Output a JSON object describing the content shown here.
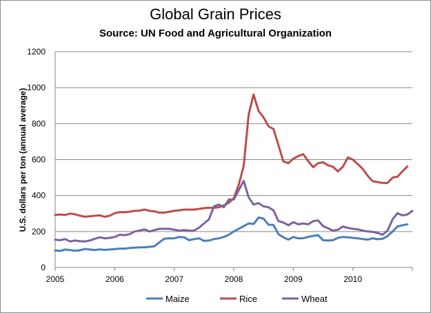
{
  "chart_data": {
    "type": "line",
    "title": "Global Grain Prices",
    "subtitle": "Source:  UN Food and Agricultural Organization",
    "xlabel": "",
    "ylabel": "U.S. dollars per ton (annual average)",
    "xlim": [
      2005,
      2011
    ],
    "ylim": [
      0,
      1200
    ],
    "x_ticks": [
      "2005",
      "2006",
      "2007",
      "2008",
      "2009",
      "2010"
    ],
    "y_ticks": [
      "0",
      "200",
      "400",
      "600",
      "800",
      "1000",
      "1200"
    ],
    "grid": true,
    "legend_position": "bottom",
    "series": [
      {
        "name": "Maize",
        "color": "#4a7ebb",
        "points": [
          [
            2005.0,
            95
          ],
          [
            2005.083,
            92
          ],
          [
            2005.167,
            100
          ],
          [
            2005.25,
            97
          ],
          [
            2005.333,
            93
          ],
          [
            2005.417,
            96
          ],
          [
            2005.5,
            103
          ],
          [
            2005.583,
            100
          ],
          [
            2005.667,
            97
          ],
          [
            2005.75,
            101
          ],
          [
            2005.833,
            98
          ],
          [
            2005.917,
            100
          ],
          [
            2006.0,
            102
          ],
          [
            2006.083,
            105
          ],
          [
            2006.167,
            105
          ],
          [
            2006.25,
            108
          ],
          [
            2006.333,
            110
          ],
          [
            2006.417,
            112
          ],
          [
            2006.5,
            112
          ],
          [
            2006.583,
            115
          ],
          [
            2006.667,
            118
          ],
          [
            2006.75,
            140
          ],
          [
            2006.833,
            160
          ],
          [
            2006.917,
            162
          ],
          [
            2007.0,
            162
          ],
          [
            2007.083,
            170
          ],
          [
            2007.167,
            168
          ],
          [
            2007.25,
            152
          ],
          [
            2007.333,
            158
          ],
          [
            2007.417,
            162
          ],
          [
            2007.5,
            148
          ],
          [
            2007.583,
            150
          ],
          [
            2007.667,
            158
          ],
          [
            2007.75,
            162
          ],
          [
            2007.833,
            170
          ],
          [
            2007.917,
            182
          ],
          [
            2008.0,
            200
          ],
          [
            2008.083,
            215
          ],
          [
            2008.167,
            230
          ],
          [
            2008.25,
            245
          ],
          [
            2008.333,
            242
          ],
          [
            2008.417,
            278
          ],
          [
            2008.5,
            272
          ],
          [
            2008.583,
            238
          ],
          [
            2008.667,
            236
          ],
          [
            2008.75,
            185
          ],
          [
            2008.833,
            168
          ],
          [
            2008.917,
            155
          ],
          [
            2009.0,
            170
          ],
          [
            2009.083,
            162
          ],
          [
            2009.167,
            163
          ],
          [
            2009.25,
            170
          ],
          [
            2009.333,
            176
          ],
          [
            2009.417,
            180
          ],
          [
            2009.5,
            152
          ],
          [
            2009.583,
            150
          ],
          [
            2009.667,
            152
          ],
          [
            2009.75,
            165
          ],
          [
            2009.833,
            170
          ],
          [
            2009.917,
            168
          ],
          [
            2010.0,
            165
          ],
          [
            2010.083,
            162
          ],
          [
            2010.167,
            158
          ],
          [
            2010.25,
            155
          ],
          [
            2010.333,
            162
          ],
          [
            2010.417,
            157
          ],
          [
            2010.5,
            160
          ],
          [
            2010.583,
            175
          ],
          [
            2010.667,
            200
          ],
          [
            2010.75,
            228
          ],
          [
            2010.833,
            235
          ],
          [
            2010.917,
            240
          ]
        ]
      },
      {
        "name": "Rice",
        "color": "#be4b48",
        "points": [
          [
            2005.0,
            292
          ],
          [
            2005.083,
            295
          ],
          [
            2005.167,
            292
          ],
          [
            2005.25,
            300
          ],
          [
            2005.333,
            296
          ],
          [
            2005.417,
            288
          ],
          [
            2005.5,
            282
          ],
          [
            2005.583,
            285
          ],
          [
            2005.667,
            288
          ],
          [
            2005.75,
            290
          ],
          [
            2005.833,
            282
          ],
          [
            2005.917,
            288
          ],
          [
            2006.0,
            302
          ],
          [
            2006.083,
            308
          ],
          [
            2006.167,
            308
          ],
          [
            2006.25,
            310
          ],
          [
            2006.333,
            315
          ],
          [
            2006.417,
            316
          ],
          [
            2006.5,
            322
          ],
          [
            2006.583,
            315
          ],
          [
            2006.667,
            312
          ],
          [
            2006.75,
            305
          ],
          [
            2006.833,
            305
          ],
          [
            2006.917,
            310
          ],
          [
            2007.0,
            315
          ],
          [
            2007.083,
            318
          ],
          [
            2007.167,
            322
          ],
          [
            2007.25,
            322
          ],
          [
            2007.333,
            322
          ],
          [
            2007.417,
            326
          ],
          [
            2007.5,
            330
          ],
          [
            2007.583,
            332
          ],
          [
            2007.667,
            332
          ],
          [
            2007.75,
            335
          ],
          [
            2007.833,
            345
          ],
          [
            2007.917,
            360
          ],
          [
            2008.0,
            385
          ],
          [
            2008.083,
            460
          ],
          [
            2008.167,
            565
          ],
          [
            2008.25,
            850
          ],
          [
            2008.333,
            962
          ],
          [
            2008.417,
            870
          ],
          [
            2008.5,
            835
          ],
          [
            2008.583,
            785
          ],
          [
            2008.667,
            770
          ],
          [
            2008.75,
            680
          ],
          [
            2008.833,
            590
          ],
          [
            2008.917,
            580
          ],
          [
            2009.0,
            605
          ],
          [
            2009.083,
            620
          ],
          [
            2009.167,
            630
          ],
          [
            2009.25,
            592
          ],
          [
            2009.333,
            558
          ],
          [
            2009.417,
            580
          ],
          [
            2009.5,
            585
          ],
          [
            2009.583,
            568
          ],
          [
            2009.667,
            560
          ],
          [
            2009.75,
            535
          ],
          [
            2009.833,
            560
          ],
          [
            2009.917,
            612
          ],
          [
            2010.0,
            600
          ],
          [
            2010.083,
            575
          ],
          [
            2010.167,
            548
          ],
          [
            2010.25,
            510
          ],
          [
            2010.333,
            480
          ],
          [
            2010.417,
            475
          ],
          [
            2010.5,
            470
          ],
          [
            2010.583,
            470
          ],
          [
            2010.667,
            500
          ],
          [
            2010.75,
            505
          ],
          [
            2010.833,
            535
          ],
          [
            2010.917,
            562
          ]
        ]
      },
      {
        "name": "Wheat",
        "color": "#7d60a0",
        "points": [
          [
            2005.0,
            155
          ],
          [
            2005.083,
            152
          ],
          [
            2005.167,
            158
          ],
          [
            2005.25,
            145
          ],
          [
            2005.333,
            150
          ],
          [
            2005.417,
            146
          ],
          [
            2005.5,
            145
          ],
          [
            2005.583,
            150
          ],
          [
            2005.667,
            160
          ],
          [
            2005.75,
            168
          ],
          [
            2005.833,
            162
          ],
          [
            2005.917,
            165
          ],
          [
            2006.0,
            170
          ],
          [
            2006.083,
            182
          ],
          [
            2006.167,
            180
          ],
          [
            2006.25,
            185
          ],
          [
            2006.333,
            200
          ],
          [
            2006.417,
            205
          ],
          [
            2006.5,
            212
          ],
          [
            2006.583,
            200
          ],
          [
            2006.667,
            208
          ],
          [
            2006.75,
            215
          ],
          [
            2006.833,
            215
          ],
          [
            2006.917,
            215
          ],
          [
            2007.0,
            210
          ],
          [
            2007.083,
            205
          ],
          [
            2007.167,
            208
          ],
          [
            2007.25,
            205
          ],
          [
            2007.333,
            205
          ],
          [
            2007.417,
            222
          ],
          [
            2007.5,
            245
          ],
          [
            2007.583,
            268
          ],
          [
            2007.667,
            340
          ],
          [
            2007.75,
            350
          ],
          [
            2007.833,
            335
          ],
          [
            2007.917,
            378
          ],
          [
            2008.0,
            378
          ],
          [
            2008.083,
            430
          ],
          [
            2008.167,
            482
          ],
          [
            2008.25,
            390
          ],
          [
            2008.333,
            350
          ],
          [
            2008.417,
            358
          ],
          [
            2008.5,
            340
          ],
          [
            2008.583,
            335
          ],
          [
            2008.667,
            318
          ],
          [
            2008.75,
            258
          ],
          [
            2008.833,
            250
          ],
          [
            2008.917,
            235
          ],
          [
            2009.0,
            252
          ],
          [
            2009.083,
            240
          ],
          [
            2009.167,
            245
          ],
          [
            2009.25,
            240
          ],
          [
            2009.333,
            258
          ],
          [
            2009.417,
            262
          ],
          [
            2009.5,
            230
          ],
          [
            2009.583,
            218
          ],
          [
            2009.667,
            205
          ],
          [
            2009.75,
            210
          ],
          [
            2009.833,
            228
          ],
          [
            2009.917,
            220
          ],
          [
            2010.0,
            215
          ],
          [
            2010.083,
            212
          ],
          [
            2010.167,
            205
          ],
          [
            2010.25,
            200
          ],
          [
            2010.333,
            198
          ],
          [
            2010.417,
            192
          ],
          [
            2010.5,
            182
          ],
          [
            2010.583,
            205
          ],
          [
            2010.667,
            268
          ],
          [
            2010.75,
            302
          ],
          [
            2010.833,
            290
          ],
          [
            2010.917,
            295
          ],
          [
            2011.0,
            315
          ]
        ]
      }
    ]
  }
}
